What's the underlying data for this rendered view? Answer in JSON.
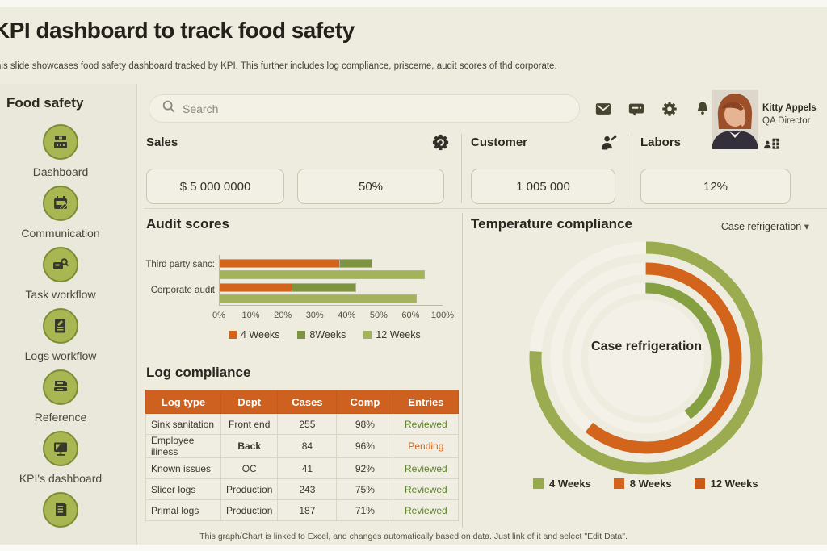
{
  "page": {
    "title": "KPI dashboard to track food safety",
    "subtitle": "This slide showcases food safety dashboard tracked by KPI. This further includes log compliance, prisceme, audit scores of thd corporate.",
    "footer_note": "This graph/Chart is linked to Excel, and changes automatically based on data. Just link of it and select \"Edit Data\"."
  },
  "sidebar": {
    "header": "Food safety",
    "items": [
      {
        "label": "Dashboard",
        "icon": "register-icon"
      },
      {
        "label": "Communication",
        "icon": "calendar-chat-icon"
      },
      {
        "label": "Task workflow",
        "icon": "task-search-icon"
      },
      {
        "label": "Logs workflow",
        "icon": "document-edit-icon"
      },
      {
        "label": "Reference",
        "icon": "printer-icon"
      },
      {
        "label": "KPI's dashboard",
        "icon": "monitor-icon"
      },
      {
        "label": "",
        "icon": "report-icon"
      }
    ]
  },
  "topbar": {
    "search_placeholder": "Search",
    "icons": [
      "mail-icon",
      "message-icon",
      "settings-icon",
      "notifications-icon"
    ],
    "user": {
      "name": "Kitty Appels",
      "role": "QA Director"
    }
  },
  "stats": [
    {
      "title": "Sales",
      "icon": "badge-gear-icon",
      "values": [
        "$ 5 000 0000",
        "50%"
      ]
    },
    {
      "title": "Customer",
      "icon": "customer-icon",
      "values": [
        "1 005 000"
      ]
    },
    {
      "title": "Labors",
      "icon": "labors-icon",
      "values": [
        "12%"
      ]
    }
  ],
  "chart_data": [
    {
      "type": "bar",
      "orientation": "horizontal",
      "title": "Audit scores",
      "categories": [
        "Third party sanc:",
        "Corporate audit"
      ],
      "series": [
        {
          "name": "4 Weeks",
          "color": "#d2641c",
          "stack": "A",
          "values": [
            38,
            23
          ]
        },
        {
          "name": "8Weeks",
          "color": "#7e9440",
          "stack": "A",
          "values": [
            10,
            20
          ]
        },
        {
          "name": "12 Weeks",
          "color": "#a3b35c",
          "stack": "B",
          "values": [
            78,
            68
          ]
        }
      ],
      "x_ticks": [
        "0%",
        "10%",
        "20%",
        "30%",
        "40%",
        "50%",
        "60%",
        "100%"
      ],
      "axis_note": "ticks evenly spaced; last interval represents 60-100",
      "grid": false,
      "legend_position": "bottom"
    },
    {
      "type": "donut",
      "title": "Temperature compliance",
      "selector_label": "Case refrigeration",
      "center_label": "Case refrigeration",
      "rings": [
        {
          "name": "4 Weeks",
          "ring": "outer",
          "color": "#9aab50",
          "percent": 76
        },
        {
          "name": "8 Weeks",
          "ring": "middle",
          "color": "#d2641c",
          "percent": 61
        },
        {
          "name": "12 Weeks",
          "ring": "inner",
          "color": "#84a041",
          "percent": 40
        }
      ],
      "legend": [
        {
          "label": "4 Weeks",
          "color": "#96a94c"
        },
        {
          "label": "8 Weeks",
          "color": "#d2641c"
        },
        {
          "label": "12 Weeks",
          "color": "#cc5a15"
        }
      ],
      "legend_position": "bottom"
    }
  ],
  "log_table": {
    "title": "Log compliance",
    "columns": [
      "Log type",
      "Dept",
      "Cases",
      "Comp",
      "Entries"
    ],
    "rows": [
      [
        "Sink sanitation",
        "Front end",
        "255",
        "98%",
        "Reviewed"
      ],
      [
        "Employee iliness",
        "Back",
        "84",
        "96%",
        "Pending"
      ],
      [
        "Known issues",
        "OC",
        "41",
        "92%",
        "Reviewed"
      ],
      [
        "Slicer logs",
        "Production",
        "243",
        "75%",
        "Reviewed"
      ],
      [
        "Primal logs",
        "Production",
        "187",
        "71%",
        "Reviewed"
      ]
    ],
    "emphasis_cell": {
      "row": 1,
      "col": 1
    },
    "status_colors": {
      "Reviewed": "#5d8426",
      "Pending": "#d2641c"
    }
  }
}
